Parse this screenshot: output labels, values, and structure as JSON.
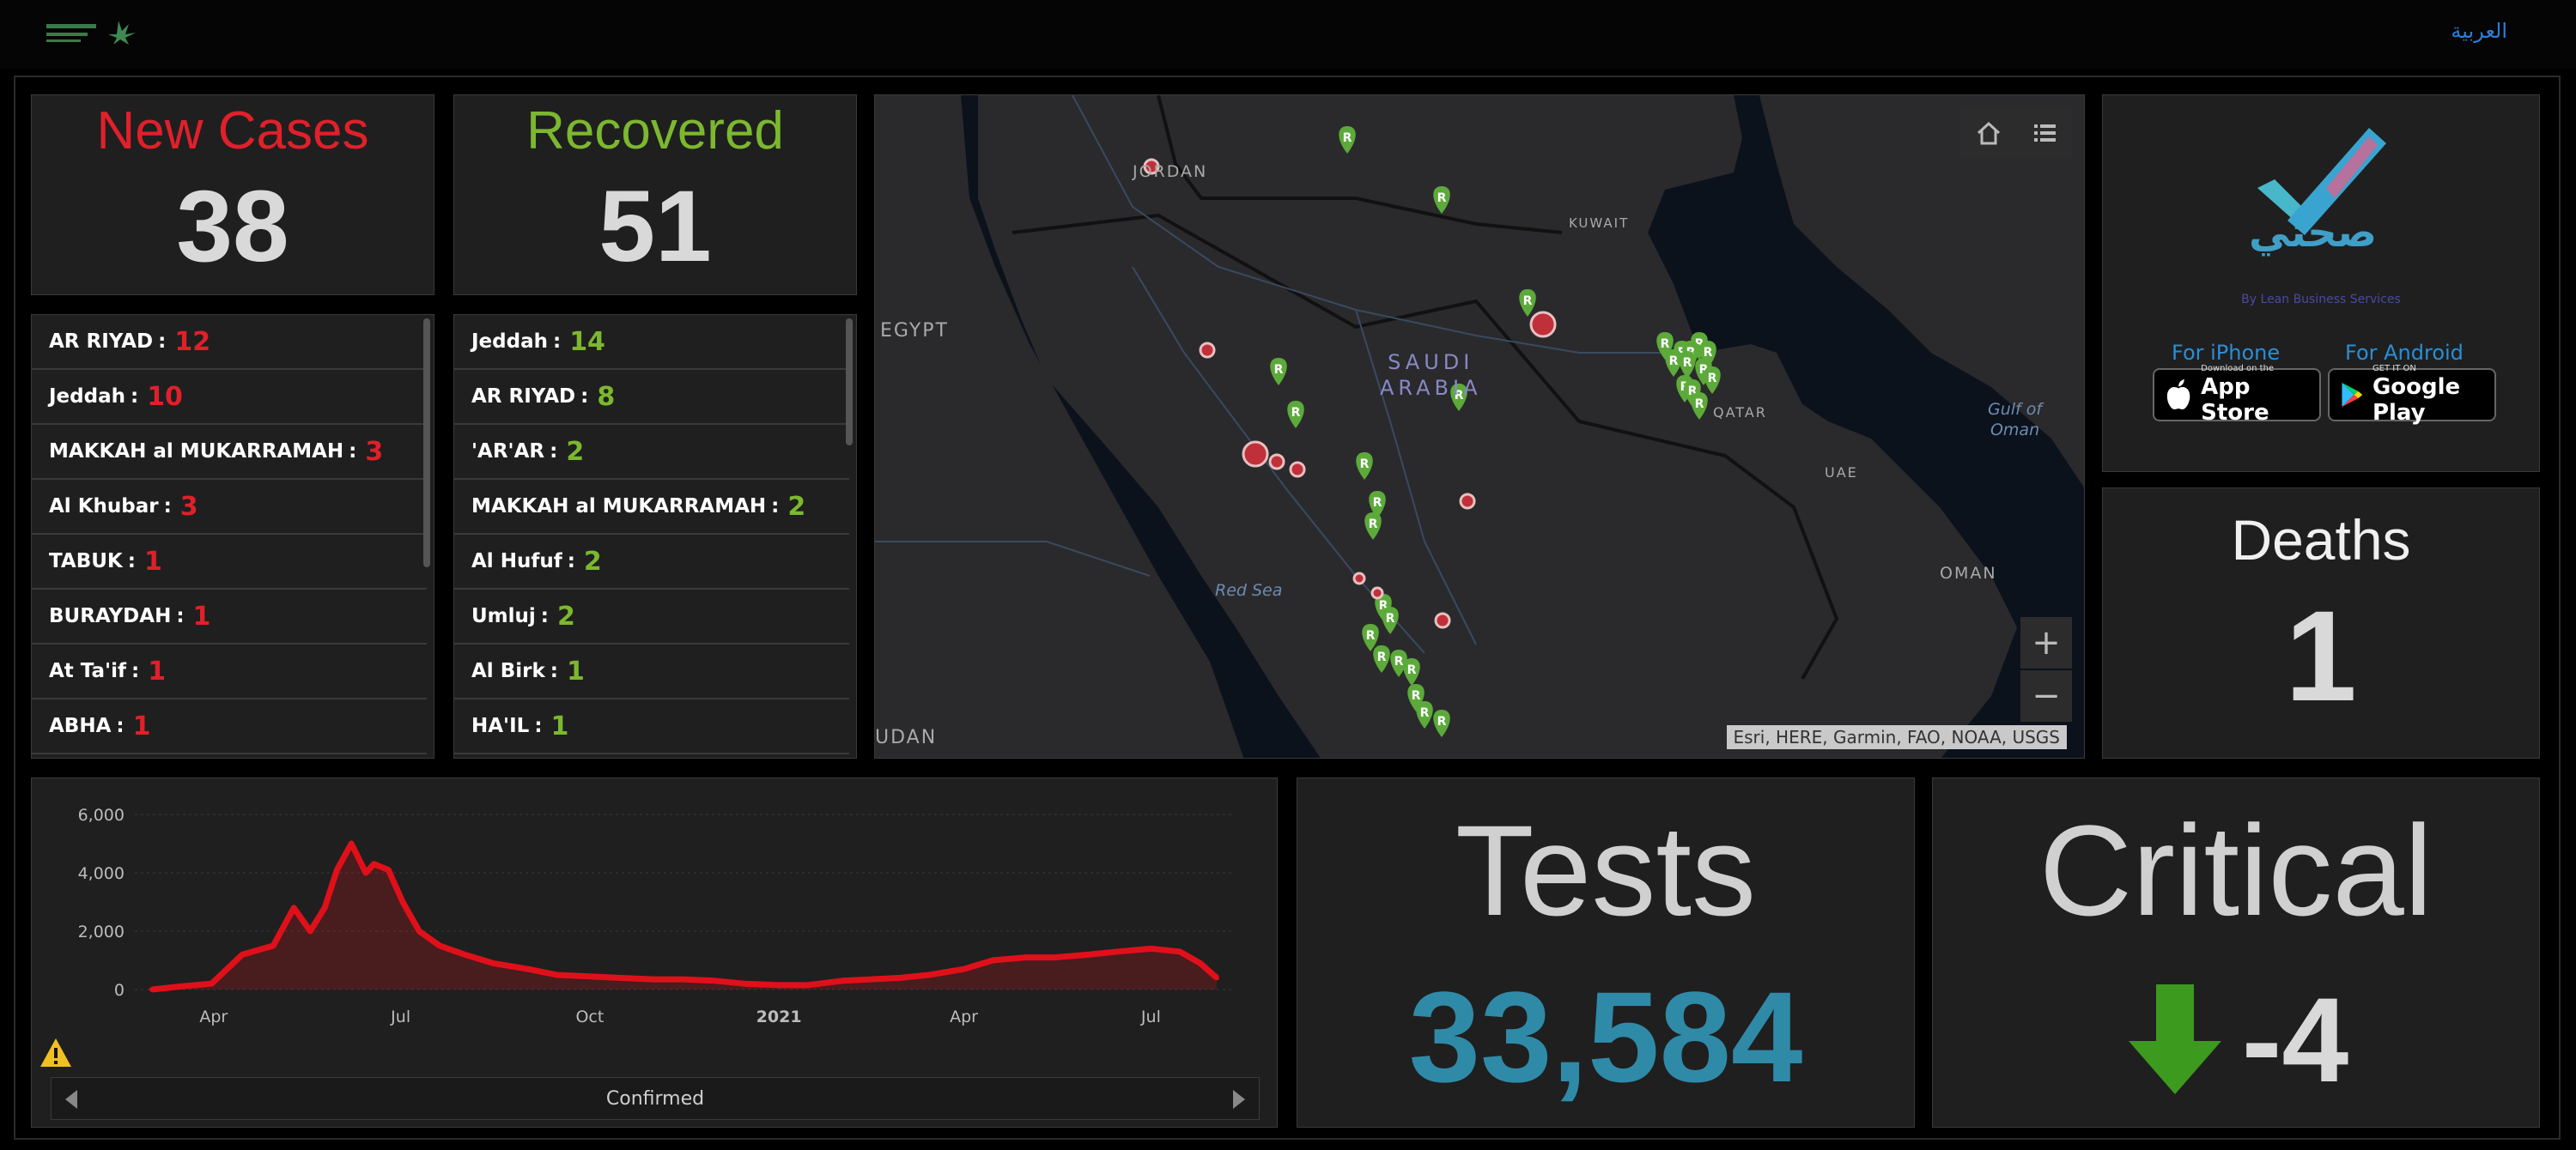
{
  "header": {
    "language_link": "العربية"
  },
  "new_cases": {
    "title": "New Cases",
    "value": "38",
    "color": "#e0202a",
    "regions": [
      {
        "name": "AR RIYAD",
        "count": "12"
      },
      {
        "name": "Jeddah",
        "count": "10"
      },
      {
        "name": "MAKKAH al MUKARRAMAH",
        "count": "3"
      },
      {
        "name": "Al Khubar",
        "count": "3"
      },
      {
        "name": "TABUK",
        "count": "1"
      },
      {
        "name": "BURAYDAH",
        "count": "1"
      },
      {
        "name": "At Ta'if",
        "count": "1"
      },
      {
        "name": "ABHA",
        "count": "1"
      }
    ]
  },
  "recovered": {
    "title": "Recovered",
    "value": "51",
    "color": "#7cb82f",
    "regions": [
      {
        "name": "Jeddah",
        "count": "14"
      },
      {
        "name": "AR RIYAD",
        "count": "8"
      },
      {
        "name": "'AR'AR",
        "count": "2"
      },
      {
        "name": "MAKKAH al MUKARRAMAH",
        "count": "2"
      },
      {
        "name": "Al Hufuf",
        "count": "2"
      },
      {
        "name": "Umluj",
        "count": "2"
      },
      {
        "name": "Al Birk",
        "count": "1"
      },
      {
        "name": "HA'IL",
        "count": "1"
      }
    ]
  },
  "map": {
    "labels": {
      "jordan": "JORDAN",
      "egypt": "EGYPT",
      "saudi_line1": "SAUDI",
      "saudi_line2": "ARABIA",
      "kuwait": "KUWAIT",
      "qatar": "QATAR",
      "uae": "UAE",
      "oman": "OMAN",
      "gulf_line1": "Gulf of",
      "gulf_line2": "Oman",
      "red_sea": "Red Sea",
      "sudan": "UDAN"
    },
    "attribution": "Esri, HERE, Garmin, FAO, NOAA, USGS",
    "zoom_in": "+",
    "zoom_out": "−",
    "marker_letter": "R",
    "colors": {
      "water": "#0b121c",
      "land": "#2a2a2c",
      "recovered_marker": "#5caa3a",
      "case_marker": "#c0303a"
    }
  },
  "app_promo": {
    "app_name": "صحتي",
    "byline": "By Lean Business Services",
    "iphone_label": "For iPhone",
    "android_label": "For Android",
    "app_store_small": "Download on the",
    "app_store_big": "App Store",
    "google_play_small": "GET IT ON",
    "google_play_big": "Google Play"
  },
  "deaths": {
    "title": "Deaths",
    "value": "1"
  },
  "tests": {
    "title": "Tests",
    "value": "33,584",
    "color": "#2f8aa8"
  },
  "critical": {
    "title": "Critical",
    "value": "-4",
    "trend": "down-arrow-icon",
    "arrow_color": "#3c9a1e"
  },
  "chart_footer": {
    "label": "Confirmed"
  },
  "chart_data": {
    "type": "area",
    "title": "",
    "xlabel": "Confirmed",
    "ylabel": "",
    "ylim": [
      0,
      6000
    ],
    "yticks": [
      "0",
      "2,000",
      "4,000",
      "6,000"
    ],
    "xticks": [
      "Apr",
      "Jul",
      "Oct",
      "2021",
      "Apr",
      "Jul"
    ],
    "grid": true,
    "color": "#e0101a",
    "series": [
      {
        "x": [
          "2020-03-02",
          "2020-03-15",
          "2020-03-31",
          "2020-04-15",
          "2020-04-30",
          "2020-05-10",
          "2020-05-18",
          "2020-05-25",
          "2020-05-31",
          "2020-06-07",
          "2020-06-14",
          "2020-06-18",
          "2020-06-25",
          "2020-07-02",
          "2020-07-10",
          "2020-07-20",
          "2020-08-01",
          "2020-08-15",
          "2020-09-01",
          "2020-09-15",
          "2020-10-01",
          "2020-10-15",
          "2020-11-01",
          "2020-11-15",
          "2020-12-01",
          "2020-12-15",
          "2021-01-01",
          "2021-01-15",
          "2021-02-01",
          "2021-02-15",
          "2021-03-01",
          "2021-03-15",
          "2021-04-01",
          "2021-04-15",
          "2021-05-01",
          "2021-05-15",
          "2021-06-01",
          "2021-06-15",
          "2021-07-01",
          "2021-07-15",
          "2021-07-25",
          "2021-08-02"
        ],
        "values": [
          0,
          100,
          200,
          1200,
          1500,
          2800,
          2000,
          2800,
          4100,
          5000,
          4000,
          4300,
          4100,
          3000,
          2000,
          1500,
          1200,
          900,
          700,
          500,
          450,
          400,
          350,
          350,
          300,
          200,
          150,
          150,
          300,
          350,
          400,
          500,
          700,
          1000,
          1100,
          1100,
          1200,
          1300,
          1400,
          1300,
          900,
          400
        ]
      }
    ]
  }
}
